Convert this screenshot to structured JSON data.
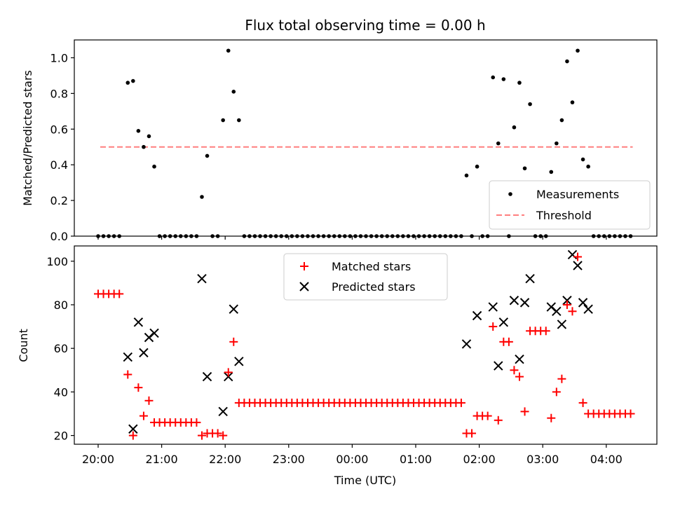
{
  "chart_data": [
    {
      "type": "scatter",
      "title": "Flux total observing time = 0.00 h",
      "xlabel": "",
      "ylabel": "Matched/Predicted stars",
      "ylim": [
        0,
        1.1
      ],
      "yticks": [
        "0.0",
        "0.2",
        "0.4",
        "0.6",
        "0.8",
        "1.0"
      ],
      "legend_position": "lower-right",
      "threshold": {
        "name": "Threshold",
        "value": 0.5,
        "x_start": "20:02",
        "x_end": "04:25",
        "color": "#ff7f7f"
      },
      "series": [
        {
          "name": "Measurements",
          "color": "#000000",
          "marker": "dot",
          "points": [
            [
              "20:00",
              0
            ],
            [
              "20:05",
              0
            ],
            [
              "20:10",
              0
            ],
            [
              "20:15",
              0
            ],
            [
              "20:20",
              0
            ],
            [
              "20:28",
              0.86
            ],
            [
              "20:33",
              0.87
            ],
            [
              "20:38",
              0.59
            ],
            [
              "20:43",
              0.5
            ],
            [
              "20:48",
              0.56
            ],
            [
              "20:53",
              0.39
            ],
            [
              "20:58",
              0
            ],
            [
              "21:03",
              0
            ],
            [
              "21:08",
              0
            ],
            [
              "21:13",
              0
            ],
            [
              "21:18",
              0
            ],
            [
              "21:23",
              0
            ],
            [
              "21:28",
              0
            ],
            [
              "21:33",
              0
            ],
            [
              "21:38",
              0.22
            ],
            [
              "21:43",
              0.45
            ],
            [
              "21:48",
              0
            ],
            [
              "21:53",
              0
            ],
            [
              "21:58",
              0.65
            ],
            [
              "22:03",
              1.04
            ],
            [
              "22:08",
              0.81
            ],
            [
              "22:13",
              0.65
            ],
            [
              "22:18",
              0
            ],
            [
              "22:23",
              0
            ],
            [
              "22:28",
              0
            ],
            [
              "22:33",
              0
            ],
            [
              "22:38",
              0
            ],
            [
              "22:43",
              0
            ],
            [
              "22:48",
              0
            ],
            [
              "22:53",
              0
            ],
            [
              "22:58",
              0
            ],
            [
              "23:03",
              0
            ],
            [
              "23:08",
              0
            ],
            [
              "23:13",
              0
            ],
            [
              "23:18",
              0
            ],
            [
              "23:23",
              0
            ],
            [
              "23:28",
              0
            ],
            [
              "23:33",
              0
            ],
            [
              "23:38",
              0
            ],
            [
              "23:43",
              0
            ],
            [
              "23:48",
              0
            ],
            [
              "23:53",
              0
            ],
            [
              "23:58",
              0
            ],
            [
              "00:03",
              0
            ],
            [
              "00:08",
              0
            ],
            [
              "00:13",
              0
            ],
            [
              "00:18",
              0
            ],
            [
              "00:23",
              0
            ],
            [
              "00:28",
              0
            ],
            [
              "00:33",
              0
            ],
            [
              "00:38",
              0
            ],
            [
              "00:43",
              0
            ],
            [
              "00:48",
              0
            ],
            [
              "00:53",
              0
            ],
            [
              "00:58",
              0
            ],
            [
              "01:03",
              0
            ],
            [
              "01:08",
              0
            ],
            [
              "01:13",
              0
            ],
            [
              "01:18",
              0
            ],
            [
              "01:23",
              0
            ],
            [
              "01:28",
              0
            ],
            [
              "01:33",
              0
            ],
            [
              "01:38",
              0
            ],
            [
              "01:43",
              0
            ],
            [
              "01:48",
              0.34
            ],
            [
              "01:53",
              0
            ],
            [
              "01:58",
              0.39
            ],
            [
              "02:03",
              0
            ],
            [
              "02:08",
              0
            ],
            [
              "02:13",
              0.89
            ],
            [
              "02:18",
              0.52
            ],
            [
              "02:23",
              0.88
            ],
            [
              "02:28",
              0
            ],
            [
              "02:33",
              0.61
            ],
            [
              "02:38",
              0.86
            ],
            [
              "02:43",
              0.38
            ],
            [
              "02:48",
              0.74
            ],
            [
              "02:53",
              0
            ],
            [
              "02:58",
              0
            ],
            [
              "03:03",
              0
            ],
            [
              "03:08",
              0.36
            ],
            [
              "03:13",
              0.52
            ],
            [
              "03:18",
              0.65
            ],
            [
              "03:23",
              0.98
            ],
            [
              "03:28",
              0.75
            ],
            [
              "03:33",
              1.04
            ],
            [
              "03:38",
              0.43
            ],
            [
              "03:43",
              0.39
            ],
            [
              "03:48",
              0
            ],
            [
              "03:53",
              0
            ],
            [
              "03:58",
              0
            ],
            [
              "04:03",
              0
            ],
            [
              "04:08",
              0
            ],
            [
              "04:13",
              0
            ],
            [
              "04:18",
              0
            ],
            [
              "04:23",
              0
            ]
          ]
        }
      ]
    },
    {
      "type": "scatter",
      "title": "",
      "xlabel": "Time (UTC)",
      "ylabel": "Count",
      "ylim": [
        16,
        107
      ],
      "yticks": [
        "20",
        "40",
        "60",
        "80",
        "100"
      ],
      "xticks": [
        "20:00",
        "21:00",
        "22:00",
        "23:00",
        "00:00",
        "01:00",
        "02:00",
        "03:00",
        "04:00"
      ],
      "legend_position": "top-center",
      "series": [
        {
          "name": "Matched stars",
          "color": "#ff0000",
          "marker": "plus",
          "points": [
            [
              "20:00",
              85
            ],
            [
              "20:05",
              85
            ],
            [
              "20:10",
              85
            ],
            [
              "20:15",
              85
            ],
            [
              "20:20",
              85
            ],
            [
              "20:28",
              48
            ],
            [
              "20:33",
              20
            ],
            [
              "20:38",
              42
            ],
            [
              "20:43",
              29
            ],
            [
              "20:48",
              36
            ],
            [
              "20:53",
              26
            ],
            [
              "20:58",
              26
            ],
            [
              "21:03",
              26
            ],
            [
              "21:08",
              26
            ],
            [
              "21:13",
              26
            ],
            [
              "21:18",
              26
            ],
            [
              "21:23",
              26
            ],
            [
              "21:28",
              26
            ],
            [
              "21:33",
              26
            ],
            [
              "21:38",
              20
            ],
            [
              "21:43",
              21
            ],
            [
              "21:48",
              21
            ],
            [
              "21:53",
              21
            ],
            [
              "21:58",
              20
            ],
            [
              "22:03",
              49
            ],
            [
              "22:08",
              63
            ],
            [
              "22:13",
              35
            ],
            [
              "22:18",
              35
            ],
            [
              "22:23",
              35
            ],
            [
              "22:28",
              35
            ],
            [
              "22:33",
              35
            ],
            [
              "22:38",
              35
            ],
            [
              "22:43",
              35
            ],
            [
              "22:48",
              35
            ],
            [
              "22:53",
              35
            ],
            [
              "22:58",
              35
            ],
            [
              "23:03",
              35
            ],
            [
              "23:08",
              35
            ],
            [
              "23:13",
              35
            ],
            [
              "23:18",
              35
            ],
            [
              "23:23",
              35
            ],
            [
              "23:28",
              35
            ],
            [
              "23:33",
              35
            ],
            [
              "23:38",
              35
            ],
            [
              "23:43",
              35
            ],
            [
              "23:48",
              35
            ],
            [
              "23:53",
              35
            ],
            [
              "23:58",
              35
            ],
            [
              "00:03",
              35
            ],
            [
              "00:08",
              35
            ],
            [
              "00:13",
              35
            ],
            [
              "00:18",
              35
            ],
            [
              "00:23",
              35
            ],
            [
              "00:28",
              35
            ],
            [
              "00:33",
              35
            ],
            [
              "00:38",
              35
            ],
            [
              "00:43",
              35
            ],
            [
              "00:48",
              35
            ],
            [
              "00:53",
              35
            ],
            [
              "00:58",
              35
            ],
            [
              "01:03",
              35
            ],
            [
              "01:08",
              35
            ],
            [
              "01:13",
              35
            ],
            [
              "01:18",
              35
            ],
            [
              "01:23",
              35
            ],
            [
              "01:28",
              35
            ],
            [
              "01:33",
              35
            ],
            [
              "01:38",
              35
            ],
            [
              "01:43",
              35
            ],
            [
              "01:48",
              21
            ],
            [
              "01:53",
              21
            ],
            [
              "01:58",
              29
            ],
            [
              "02:03",
              29
            ],
            [
              "02:08",
              29
            ],
            [
              "02:13",
              70
            ],
            [
              "02:18",
              27
            ],
            [
              "02:23",
              63
            ],
            [
              "02:28",
              63
            ],
            [
              "02:33",
              50
            ],
            [
              "02:38",
              47
            ],
            [
              "02:43",
              31
            ],
            [
              "02:48",
              68
            ],
            [
              "02:53",
              68
            ],
            [
              "02:58",
              68
            ],
            [
              "03:03",
              68
            ],
            [
              "03:08",
              28
            ],
            [
              "03:13",
              40
            ],
            [
              "03:18",
              46
            ],
            [
              "03:23",
              80
            ],
            [
              "03:28",
              77
            ],
            [
              "03:33",
              102
            ],
            [
              "03:38",
              35
            ],
            [
              "03:43",
              30
            ],
            [
              "03:48",
              30
            ],
            [
              "03:53",
              30
            ],
            [
              "03:58",
              30
            ],
            [
              "04:03",
              30
            ],
            [
              "04:08",
              30
            ],
            [
              "04:13",
              30
            ],
            [
              "04:18",
              30
            ],
            [
              "04:23",
              30
            ]
          ]
        },
        {
          "name": "Predicted stars",
          "color": "#000000",
          "marker": "x",
          "points": [
            [
              "20:28",
              56
            ],
            [
              "20:33",
              23
            ],
            [
              "20:38",
              72
            ],
            [
              "20:43",
              58
            ],
            [
              "20:48",
              65
            ],
            [
              "20:53",
              67
            ],
            [
              "21:38",
              92
            ],
            [
              "21:43",
              47
            ],
            [
              "21:58",
              31
            ],
            [
              "22:03",
              47
            ],
            [
              "22:08",
              78
            ],
            [
              "22:13",
              54
            ],
            [
              "01:48",
              62
            ],
            [
              "01:58",
              75
            ],
            [
              "02:13",
              79
            ],
            [
              "02:18",
              52
            ],
            [
              "02:23",
              72
            ],
            [
              "02:33",
              82
            ],
            [
              "02:38",
              55
            ],
            [
              "02:43",
              81
            ],
            [
              "02:48",
              92
            ],
            [
              "03:08",
              79
            ],
            [
              "03:13",
              77
            ],
            [
              "03:18",
              71
            ],
            [
              "03:23",
              82
            ],
            [
              "03:28",
              103
            ],
            [
              "03:33",
              98
            ],
            [
              "03:38",
              81
            ],
            [
              "03:43",
              78
            ]
          ]
        }
      ]
    }
  ]
}
